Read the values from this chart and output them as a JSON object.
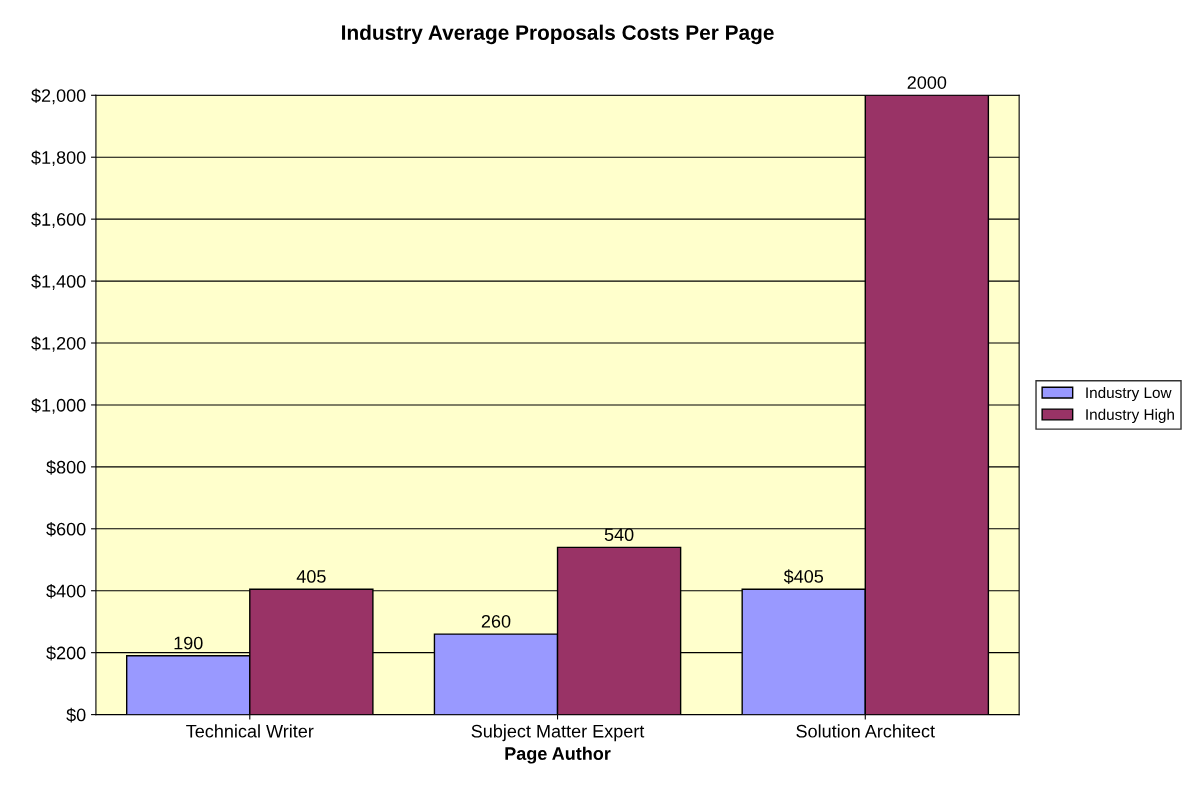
{
  "chart_data": {
    "type": "bar",
    "title": "Industry Average Proposals Costs Per Page",
    "xlabel": "Page Author",
    "categories": [
      "Technical Writer",
      "Subject Matter Expert",
      "Solution Architect"
    ],
    "series": [
      {
        "name": "Industry Low",
        "color": "#9999ff",
        "values": [
          190,
          260,
          405
        ],
        "value_labels": [
          "190",
          "260",
          "$405"
        ]
      },
      {
        "name": "Industry High",
        "color": "#993366",
        "values": [
          405,
          540,
          2000
        ],
        "value_labels": [
          "405",
          "540",
          "2000"
        ]
      }
    ],
    "ylim": [
      0,
      2000
    ],
    "yticks": [
      {
        "value": 0,
        "label": "$0"
      },
      {
        "value": 200,
        "label": "$200"
      },
      {
        "value": 400,
        "label": "$400"
      },
      {
        "value": 600,
        "label": "$600"
      },
      {
        "value": 800,
        "label": "$800"
      },
      {
        "value": 1000,
        "label": "$1,000"
      },
      {
        "value": 1200,
        "label": "$1,200"
      },
      {
        "value": 1400,
        "label": "$1,400"
      },
      {
        "value": 1600,
        "label": "$1,600"
      },
      {
        "value": 1800,
        "label": "$1,800"
      },
      {
        "value": 2000,
        "label": "$2,000"
      }
    ],
    "grid": "y",
    "legend": "right"
  }
}
